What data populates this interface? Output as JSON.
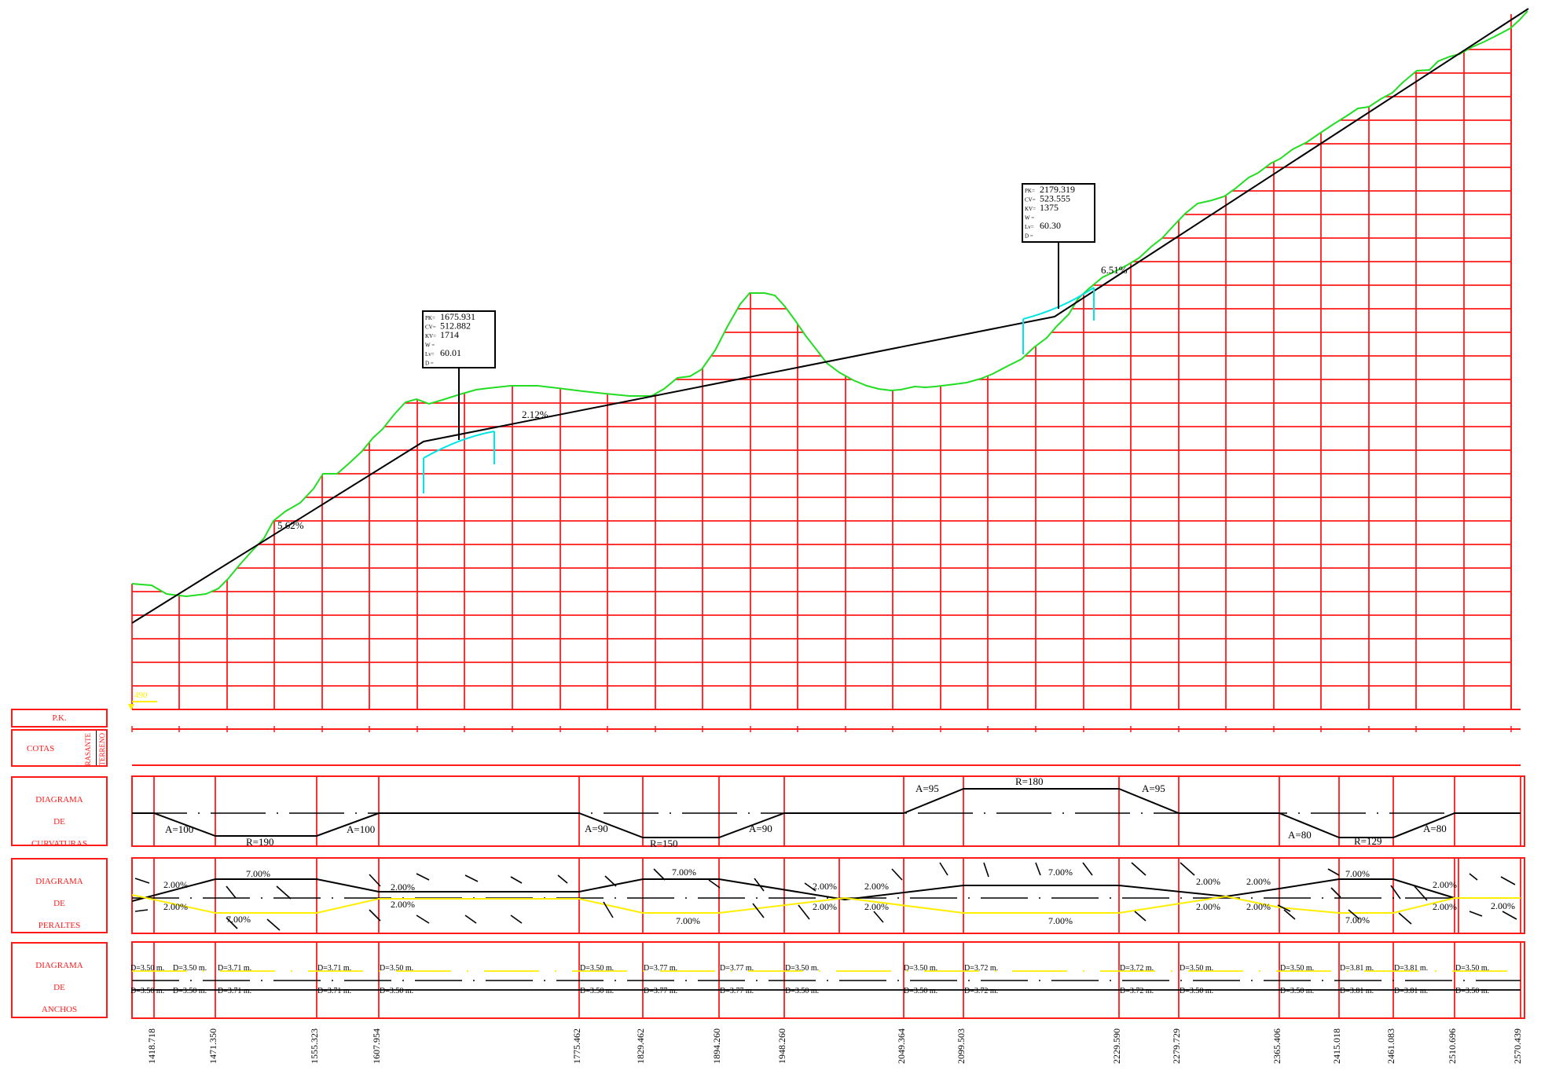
{
  "row_labels": {
    "pk": "P.K.",
    "cotas": "COTAS",
    "rasante": "RASANTE",
    "terreno": "TERRENO",
    "curvaturas": [
      "DIAGRAMA",
      "DE",
      "CURVATURAS"
    ],
    "peraltes": [
      "DIAGRAMA",
      "DE",
      "PERALTES"
    ],
    "anchos": [
      "DIAGRAMA",
      "DE",
      "ANCHOS"
    ]
  },
  "datum_label": "490",
  "grade_labels": [
    "5.62%",
    "2.12%",
    "6.51%"
  ],
  "vertical_curves": [
    {
      "pk": "1675.931",
      "cv": "512.882",
      "kv": "1714",
      "w": "",
      "lv": "60.01",
      "d": ""
    },
    {
      "pk": "2179.319",
      "cv": "523.555",
      "kv": "1375",
      "w": "",
      "lv": "60.30",
      "d": ""
    }
  ],
  "field_keys": {
    "pk": "PK=",
    "cv": "CV=",
    "kv": "KV=",
    "w": "W =",
    "lv": "Lv=",
    "d": "D ="
  },
  "curvature_labels": [
    "A=100",
    "R=190",
    "A=100",
    "A=90",
    "R=150",
    "A=90",
    "A=95",
    "R=180",
    "A=95",
    "A=80",
    "R=129",
    "A=80"
  ],
  "superelevation_labels": [
    "2.00%",
    "2.00%",
    "7.00%",
    "7.00%",
    "2.00%",
    "2.00%",
    "7.00%",
    "7.00%",
    "2.00%",
    "2.00%",
    "2.00%",
    "2.00%",
    "7.00%",
    "7.00%",
    "2.00%",
    "2.00%",
    "2.00%",
    "2.00%",
    "7.00%",
    "7.00%",
    "2.00%",
    "2.00%",
    "2.00%"
  ],
  "width_top": [
    "D=3.50 m.",
    "D=3.50 m.",
    "D=3.71 m.",
    "D=3.71 m.",
    "D=3.50 m.",
    "D=3.50 m.",
    "D=3.77 m.",
    "D=3.77 m.",
    "D=3.50 m.",
    "D=3.50 m.",
    "D=3.72 m.",
    "D=3.72 m.",
    "D=3.50 m.",
    "D=3.50 m.",
    "D=3.81 m.",
    "D=3.81 m.",
    "D=3.50 m."
  ],
  "width_bottom": [
    "D=3.50 m.",
    "D=3.50 m.",
    "D=3.71 m.",
    "D=3.71 m.",
    "D=3.50 m.",
    "D=3.50 m.",
    "D=3.77 m.",
    "D=3.77 m.",
    "D=3.50 m.",
    "D=3.50 m.",
    "D=3.72 m.",
    "D=3.72 m.",
    "D=3.50 m.",
    "D=3.50 m.",
    "D=3.81 m.",
    "D=3.81 m.",
    "D=3.50 m."
  ],
  "stations": [
    "1418.718",
    "1471.350",
    "1555.323",
    "1607.954",
    "1775.462",
    "1829.462",
    "1894.260",
    "1948.260",
    "2049.364",
    "2099.503",
    "2229.590",
    "2279.729",
    "2365.406",
    "2415.018",
    "2461.083",
    "2510.696",
    "2570.439"
  ],
  "colors": {
    "grid": "#ff1a1a",
    "terrain": "#22dd22",
    "grade": "#000000",
    "curve": "#00e5e5",
    "aux": "#ffee00"
  }
}
